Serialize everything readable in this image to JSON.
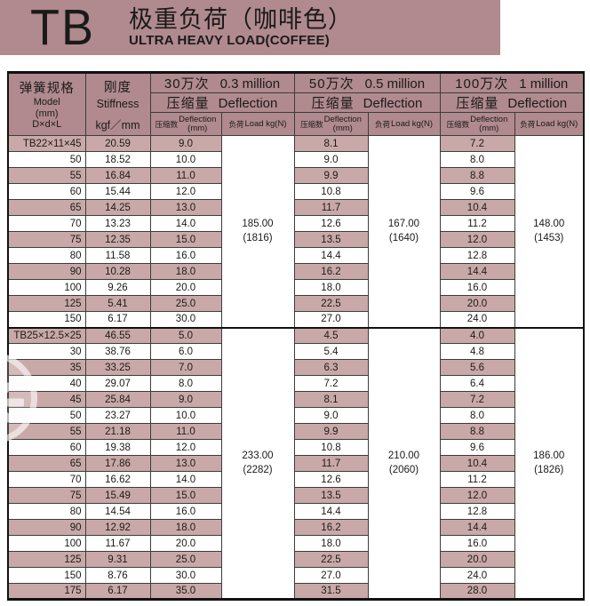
{
  "banner": {
    "logo": "TB",
    "title_cn": "极重负荷（咖啡色）",
    "title_en": "ULTRA HEAVY LOAD(COFFEE)"
  },
  "colors": {
    "banner_bg": "#b08a8e",
    "header_bg": "#b08a8e",
    "row_shaded": "#c9a9a7",
    "row_white": "#ffffff"
  },
  "table": {
    "header": {
      "model_cn": "弹簧规格",
      "model_en": "Model",
      "model_unit": "(mm)",
      "model_dim": "D×d×L",
      "stiffness_cn": "刚度",
      "stiffness_en": "Stiffness",
      "stiffness_unit": "kgf／mm",
      "groups": [
        {
          "cycles_cn": "30万次",
          "cycles_en": "0.3 million"
        },
        {
          "cycles_cn": "50万次",
          "cycles_en": "0.5 million"
        },
        {
          "cycles_cn": "100万次",
          "cycles_en": "1 million"
        }
      ],
      "deflection_cn": "压缩量",
      "deflection_en": "Deflection",
      "sub_defl_cn": "压缩数",
      "sub_defl_en": "Deflection",
      "sub_defl_unit": "(mm)",
      "sub_load_cn": "负荷",
      "sub_load_en": "Load  kg(N)"
    },
    "sections": [
      {
        "loads": {
          "m03": [
            "185.00",
            "(1816)"
          ],
          "m05": [
            "167.00",
            "(1640)"
          ],
          "m10": [
            "148.00",
            "(1453)"
          ]
        },
        "rows": [
          {
            "model": "TB22×11×45",
            "stiffness": "20.59",
            "defl_03": "9.0",
            "defl_05": "8.1",
            "defl_10": "7.2"
          },
          {
            "model": "50",
            "stiffness": "18.52",
            "defl_03": "10.0",
            "defl_05": "9.0",
            "defl_10": "8.0"
          },
          {
            "model": "55",
            "stiffness": "16.84",
            "defl_03": "11.0",
            "defl_05": "9.9",
            "defl_10": "8.8"
          },
          {
            "model": "60",
            "stiffness": "15.44",
            "defl_03": "12.0",
            "defl_05": "10.8",
            "defl_10": "9.6"
          },
          {
            "model": "65",
            "stiffness": "14.25",
            "defl_03": "13.0",
            "defl_05": "11.7",
            "defl_10": "10.4"
          },
          {
            "model": "70",
            "stiffness": "13.23",
            "defl_03": "14.0",
            "defl_05": "12.6",
            "defl_10": "11.2"
          },
          {
            "model": "75",
            "stiffness": "12.35",
            "defl_03": "15.0",
            "defl_05": "13.5",
            "defl_10": "12.0"
          },
          {
            "model": "80",
            "stiffness": "11.58",
            "defl_03": "16.0",
            "defl_05": "14.4",
            "defl_10": "12.8"
          },
          {
            "model": "90",
            "stiffness": "10.28",
            "defl_03": "18.0",
            "defl_05": "16.2",
            "defl_10": "14.4"
          },
          {
            "model": "100",
            "stiffness": "9.26",
            "defl_03": "20.0",
            "defl_05": "18.0",
            "defl_10": "16.0"
          },
          {
            "model": "125",
            "stiffness": "5.41",
            "defl_03": "25.0",
            "defl_05": "22.5",
            "defl_10": "20.0"
          },
          {
            "model": "150",
            "stiffness": "6.17",
            "defl_03": "30.0",
            "defl_05": "27.0",
            "defl_10": "24.0"
          }
        ]
      },
      {
        "loads": {
          "m03": [
            "233.00",
            "(2282)"
          ],
          "m05": [
            "210.00",
            "(2060)"
          ],
          "m10": [
            "186.00",
            "(1826)"
          ]
        },
        "rows": [
          {
            "model": "TB25×12.5×25",
            "stiffness": "46.55",
            "defl_03": "5.0",
            "defl_05": "4.5",
            "defl_10": "4.0"
          },
          {
            "model": "30",
            "stiffness": "38.76",
            "defl_03": "6.0",
            "defl_05": "5.4",
            "defl_10": "4.8"
          },
          {
            "model": "35",
            "stiffness": "33.25",
            "defl_03": "7.0",
            "defl_05": "6.3",
            "defl_10": "5.6"
          },
          {
            "model": "40",
            "stiffness": "29.07",
            "defl_03": "8.0",
            "defl_05": "7.2",
            "defl_10": "6.4"
          },
          {
            "model": "45",
            "stiffness": "25.84",
            "defl_03": "9.0",
            "defl_05": "8.1",
            "defl_10": "7.2"
          },
          {
            "model": "50",
            "stiffness": "23.27",
            "defl_03": "10.0",
            "defl_05": "9.0",
            "defl_10": "8.0"
          },
          {
            "model": "55",
            "stiffness": "21.18",
            "defl_03": "11.0",
            "defl_05": "9.9",
            "defl_10": "8.8"
          },
          {
            "model": "60",
            "stiffness": "19.38",
            "defl_03": "12.0",
            "defl_05": "10.8",
            "defl_10": "9.6"
          },
          {
            "model": "65",
            "stiffness": "17.86",
            "defl_03": "13.0",
            "defl_05": "11.7",
            "defl_10": "10.4"
          },
          {
            "model": "70",
            "stiffness": "16.62",
            "defl_03": "14.0",
            "defl_05": "12.6",
            "defl_10": "11.2"
          },
          {
            "model": "75",
            "stiffness": "15.49",
            "defl_03": "15.0",
            "defl_05": "13.5",
            "defl_10": "12.0"
          },
          {
            "model": "80",
            "stiffness": "14.54",
            "defl_03": "16.0",
            "defl_05": "14.4",
            "defl_10": "12.8"
          },
          {
            "model": "90",
            "stiffness": "12.92",
            "defl_03": "18.0",
            "defl_05": "16.2",
            "defl_10": "14.4"
          },
          {
            "model": "100",
            "stiffness": "11.67",
            "defl_03": "20.0",
            "defl_05": "18.0",
            "defl_10": "16.0"
          },
          {
            "model": "125",
            "stiffness": "9.31",
            "defl_03": "25.0",
            "defl_05": "22.5",
            "defl_10": "20.0"
          },
          {
            "model": "150",
            "stiffness": "8.76",
            "defl_03": "30.0",
            "defl_05": "27.0",
            "defl_10": "24.0"
          },
          {
            "model": "175",
            "stiffness": "6.17",
            "defl_03": "35.0",
            "defl_05": "31.5",
            "defl_10": "28.0"
          }
        ]
      }
    ]
  }
}
